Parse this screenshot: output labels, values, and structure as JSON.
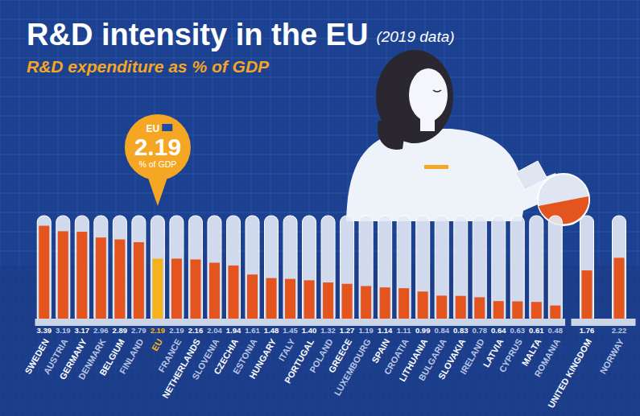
{
  "chart_data": {
    "type": "bar",
    "title": "R&D intensity in the EU",
    "title_note": "(2019 data)",
    "subtitle": "R&D expenditure as % of GDP",
    "categories": [
      "SWEDEN",
      "AUSTRIA",
      "GERMANY",
      "DENMARK",
      "BELGIUM",
      "FINLAND",
      "EU",
      "FRANCE",
      "NETHERLANDS",
      "SLOVENIA",
      "CZECHIA",
      "ESTONIA",
      "HUNGARY",
      "ITALY",
      "PORTUGAL",
      "POLAND",
      "GREECE",
      "LUXEMBOURG",
      "SPAIN",
      "CROATIA",
      "LITHUANIA",
      "BULGARIA",
      "SLOVAKIA",
      "IRELAND",
      "LATVIA",
      "CYPRUS",
      "MALTA",
      "ROMANIA",
      "UNITED KINGDOM",
      "NORWAY"
    ],
    "values": [
      3.39,
      3.19,
      3.17,
      2.96,
      2.89,
      2.79,
      2.19,
      2.19,
      2.16,
      2.04,
      1.94,
      1.61,
      1.48,
      1.45,
      1.4,
      1.32,
      1.27,
      1.19,
      1.14,
      1.11,
      0.99,
      0.84,
      0.83,
      0.78,
      0.64,
      0.63,
      0.61,
      0.48,
      1.76,
      2.22
    ],
    "value_labels": [
      "3.39",
      "3.19",
      "3.17",
      "2.96",
      "2.89",
      "2.79",
      "2.19",
      "2.19",
      "2.16",
      "2.04",
      "1.94",
      "1.61",
      "1.48",
      "1.45",
      "1.40",
      "1.32",
      "1.27",
      "1.19",
      "1.14",
      "1.11",
      "0.99",
      "0.84",
      "0.83",
      "0.78",
      "0.64",
      "0.63",
      "0.61",
      "0.48",
      "1.76",
      "2.22"
    ],
    "color": "#e3541f",
    "colors": [
      "#e3541f",
      "#e3541f",
      "#e3541f",
      "#e3541f",
      "#e3541f",
      "#e3541f",
      "#f5b21c",
      "#e3541f",
      "#e3541f",
      "#e3541f",
      "#e3541f",
      "#e3541f",
      "#e3541f",
      "#e3541f",
      "#e3541f",
      "#e3541f",
      "#e3541f",
      "#e3541f",
      "#e3541f",
      "#e3541f",
      "#e3541f",
      "#e3541f",
      "#e3541f",
      "#e3541f",
      "#e3541f",
      "#e3541f",
      "#e3541f",
      "#e3541f",
      "#e3541f",
      "#e3541f"
    ],
    "ylim": [
      0,
      3.7
    ],
    "data_labels": true,
    "tick_labels": "x",
    "annotations": [
      {
        "label": "EU",
        "value": 2.19,
        "text": "% of GDP"
      }
    ]
  }
}
